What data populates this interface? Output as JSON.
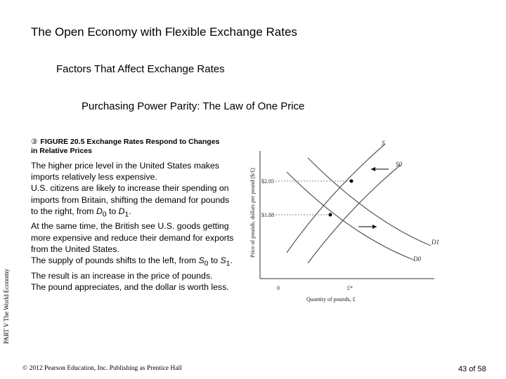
{
  "slide": {
    "title": "The Open Economy with Flexible Exchange Rates",
    "subtitle1": "Factors That Affect Exchange Rates",
    "subtitle2": "Purchasing Power Parity: The Law of One Price",
    "side_label": "PART V The World Economy",
    "figure_caption": "FIGURE 20.5  Exchange Rates Respond to Changes in Relative Prices",
    "body": [
      "The higher price level in the United States makes imports relatively less expensive.",
      "U.S. citizens are likely to increase their spending on imports from Britain, shifting the demand for pounds to the right, from D0 to D1.",
      "At the same time, the British see U.S. goods getting more expensive and reduce their demand for exports from the United States.",
      "The supply of pounds shifts to the left, from S0 to S1.",
      "The result is an increase in the price of pounds.",
      "The pound appreciates, and the dollar is worth less."
    ],
    "footer": "© 2012 Pearson Education, Inc. Publishing as Prentice Hall",
    "page": "43 of 58"
  },
  "chart_data": {
    "type": "line",
    "ylabel": "Price of pounds, dollars per pound ($/£)",
    "xlabel": "Quantity of pounds, £",
    "y_ticks": [
      "$2.05",
      "$1.88"
    ],
    "x_ticks": [
      "0",
      "£*"
    ],
    "curve_labels": [
      "S",
      "S0",
      "D1",
      "D0"
    ],
    "series": [
      {
        "name": "S",
        "shape": "upward"
      },
      {
        "name": "S0",
        "shape": "upward"
      },
      {
        "name": "D0",
        "shape": "downward"
      },
      {
        "name": "D1",
        "shape": "downward"
      }
    ],
    "equilibria": [
      {
        "price": "$2.05",
        "quantity": "£*"
      },
      {
        "price": "$1.88",
        "quantity": "£*"
      }
    ]
  }
}
